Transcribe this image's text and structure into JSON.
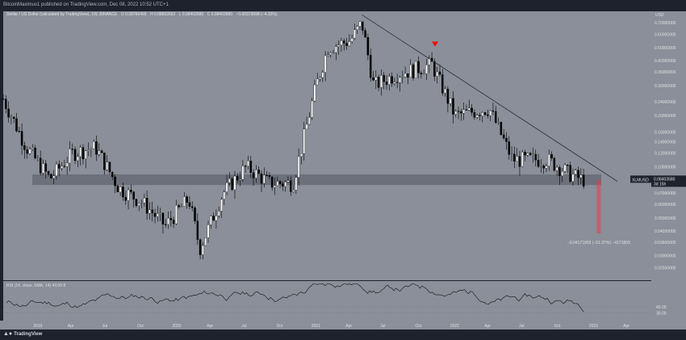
{
  "header": {
    "publisher_line": "BitcoinMaximus1 published on TradingView.com, Dec 08, 2022 10:52 UTC+1"
  },
  "instrument": {
    "title": "Stellar / US Dollar (calculated by TradingView), 1W, BINANCE",
    "open": "O 0.08766493",
    "high": "H 0.08892662",
    "low": "L 0.08403580",
    "close": "C 0.08403580",
    "change": "−0.00379698 (−4.32%)"
  },
  "price_axis": {
    "currency": "USD",
    "labels": [
      "0.70000000",
      "0.60000000",
      "0.50000000",
      "0.42000000",
      "0.36000000",
      "0.30000000",
      "0.24000000",
      "0.20000000",
      "0.16000000",
      "0.14000000",
      "0.12000000",
      "0.10000000",
      "0.08403580",
      "0.07000000",
      "0.06000000",
      "0.05000000",
      "0.04200000",
      "0.03600000",
      "0.03000000",
      "0.02550000"
    ],
    "current_symbol": "XLMUSD",
    "current_price": "0.08403580",
    "countdown": "3d 15h"
  },
  "time_axis": {
    "labels": [
      "2019",
      "Apr",
      "Jul",
      "Oct",
      "2020",
      "Apr",
      "Jul",
      "Oct",
      "2021",
      "Apr",
      "Jul",
      "Oct",
      "2022",
      "Apr",
      "Jul",
      "Oct",
      "2023",
      "Apr"
    ]
  },
  "measure_label": "−0.04171803 (−51.37%) −4171803",
  "rsi": {
    "label": "RSI (14, close, SMA, 14)",
    "values": "43.09  8",
    "levels": [
      "40.00",
      "30.00"
    ]
  },
  "footer": {
    "brand": "TradingView"
  },
  "colors": {
    "background": "#1e222d",
    "plot": "#8a8f99",
    "candle_up": "#ffffff",
    "candle_down": "#000000",
    "trendline": "#2a2e39",
    "support_zone": "#6b707a",
    "measure": "#f23645",
    "marker": "#ff0000"
  },
  "chart_data": {
    "type": "candlestick",
    "symbol": "XLMUSD",
    "timeframe": "1W",
    "x_range": [
      "2018-10",
      "2023-06"
    ],
    "y_scale": "log",
    "y_range": [
      0.022,
      0.8
    ],
    "price_series_approx": [
      {
        "date": "2018-10",
        "price": 0.25
      },
      {
        "date": "2018-12",
        "price": 0.13
      },
      {
        "date": "2019-02",
        "price": 0.085
      },
      {
        "date": "2019-04",
        "price": 0.12
      },
      {
        "date": "2019-06",
        "price": 0.13
      },
      {
        "date": "2019-08",
        "price": 0.075
      },
      {
        "date": "2019-10",
        "price": 0.062
      },
      {
        "date": "2019-12",
        "price": 0.045
      },
      {
        "date": "2020-02",
        "price": 0.065
      },
      {
        "date": "2020-03",
        "price": 0.033
      },
      {
        "date": "2020-05",
        "price": 0.07
      },
      {
        "date": "2020-07",
        "price": 0.1
      },
      {
        "date": "2020-09",
        "price": 0.08
      },
      {
        "date": "2020-11",
        "price": 0.08
      },
      {
        "date": "2021-01",
        "price": 0.3
      },
      {
        "date": "2021-02",
        "price": 0.5
      },
      {
        "date": "2021-04",
        "price": 0.55
      },
      {
        "date": "2021-05",
        "price": 0.7
      },
      {
        "date": "2021-06",
        "price": 0.3
      },
      {
        "date": "2021-08",
        "price": 0.35
      },
      {
        "date": "2021-10",
        "price": 0.38
      },
      {
        "date": "2021-11",
        "price": 0.4
      },
      {
        "date": "2022-01",
        "price": 0.2
      },
      {
        "date": "2022-04",
        "price": 0.22
      },
      {
        "date": "2022-06",
        "price": 0.11
      },
      {
        "date": "2022-09",
        "price": 0.11
      },
      {
        "date": "2022-11",
        "price": 0.09
      },
      {
        "date": "2022-12",
        "price": 0.084
      }
    ],
    "support_zone": [
      0.078,
      0.09
    ],
    "measurement": {
      "change": "−0.04171803",
      "percent": "−51.37%"
    },
    "rsi_levels": [
      40,
      30
    ]
  }
}
